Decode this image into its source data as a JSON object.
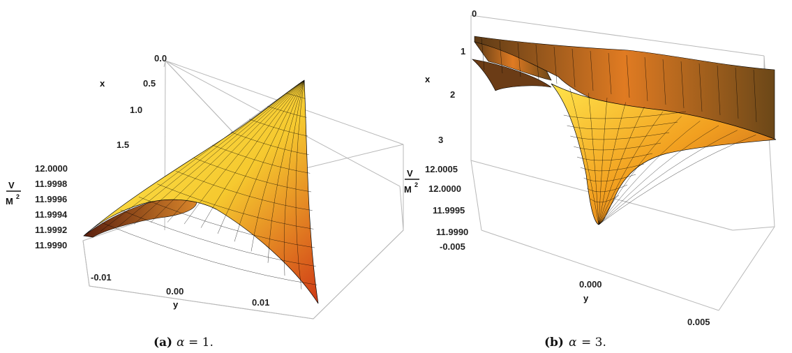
{
  "chart_data": [
    {
      "type": "surface3d",
      "caption": {
        "tag": "(a)",
        "param": "α",
        "eq": "= 1."
      },
      "zlabel": {
        "num": "V",
        "den": "M",
        "exp": "2"
      },
      "xlabel": "x",
      "ylabel": "y",
      "x_ticks": [
        "0.0",
        "0.5",
        "1.0",
        "1.5"
      ],
      "y_ticks": [
        "-0.01",
        "0.00",
        "0.01"
      ],
      "z_ticks": [
        "12.0000",
        "11.9998",
        "11.9996",
        "11.9994",
        "11.9992",
        "11.9990"
      ],
      "xlim": [
        0,
        1.8
      ],
      "ylim": [
        -0.014,
        0.014
      ],
      "zlim": [
        11.999,
        12.0
      ]
    },
    {
      "type": "surface3d",
      "caption": {
        "tag": "(b)",
        "param": "α",
        "eq": "= 3."
      },
      "zlabel": {
        "num": "V",
        "den": "M",
        "exp": "2"
      },
      "xlabel": "x",
      "ylabel": "y",
      "x_ticks": [
        "0",
        "1",
        "2",
        "3"
      ],
      "y_ticks": [
        "-0.005",
        "0.000",
        "0.005"
      ],
      "z_ticks": [
        "12.0005",
        "12.0000",
        "11.9995",
        "11.9990"
      ],
      "xlim": [
        0,
        3.5
      ],
      "ylim": [
        -0.006,
        0.006
      ],
      "zlim": [
        11.999,
        12.0006
      ]
    }
  ],
  "colors": {
    "surface_light": "#ffe94a",
    "surface_mid": "#f3a21e",
    "surface_dark": "#6a2a12",
    "grid": "#000000",
    "box": "#b8b8b8"
  }
}
